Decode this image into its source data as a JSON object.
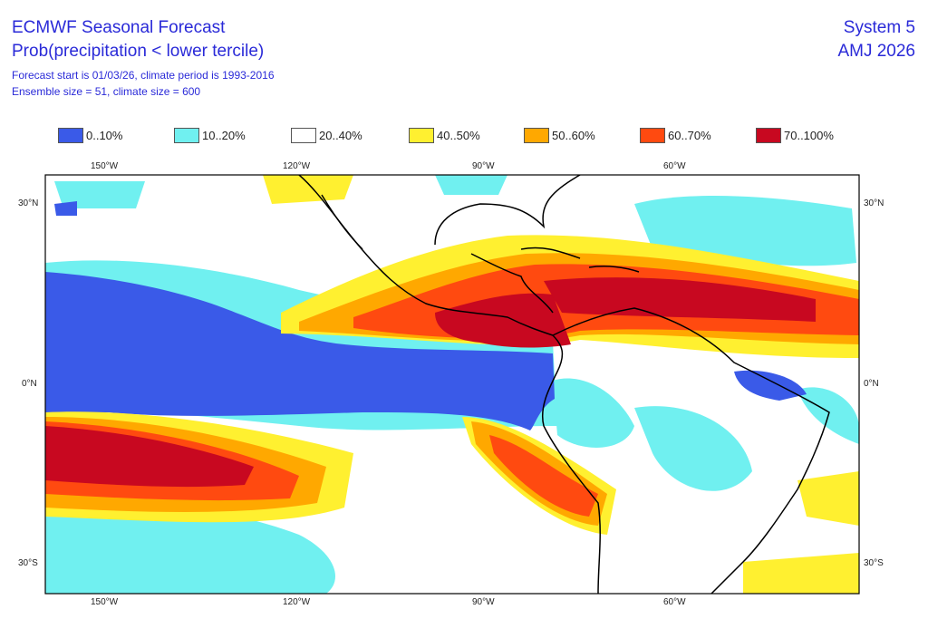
{
  "header": {
    "title": "ECMWF Seasonal Forecast",
    "subtitle": "Prob(precipitation < lower tercile)",
    "info_line1": "Forecast start is 01/03/26, climate period is 1993-2016",
    "info_line2": "Ensemble size = 51, climate size = 600",
    "system": "System 5",
    "period": "AMJ 2026"
  },
  "legend": [
    {
      "label": "0..10%",
      "color": "#3a5ae8"
    },
    {
      "label": "10..20%",
      "color": "#70f0f0"
    },
    {
      "label": "20..40%",
      "color": "#ffffff"
    },
    {
      "label": "40..50%",
      "color": "#fff030"
    },
    {
      "label": "50..60%",
      "color": "#ffa800"
    },
    {
      "label": "60..70%",
      "color": "#ff4a10"
    },
    {
      "label": "70..100%",
      "color": "#c80820"
    }
  ],
  "axes": {
    "lon_ticks": [
      "150°W",
      "120°W",
      "90°W",
      "60°W"
    ],
    "lat_ticks": [
      "30°N",
      "0°N",
      "30°S"
    ]
  }
}
